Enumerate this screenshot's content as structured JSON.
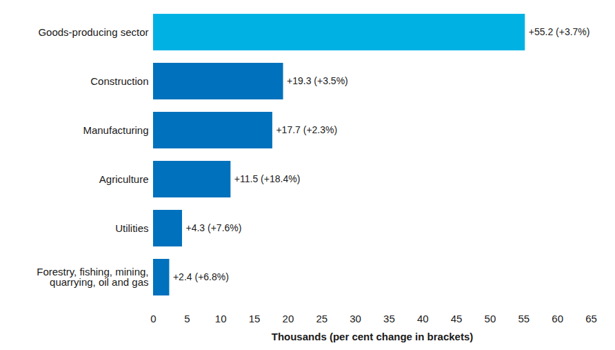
{
  "chart_data": {
    "type": "bar",
    "orientation": "horizontal",
    "categories": [
      "Goods-producing sector",
      "Construction",
      "Manufacturing",
      "Agriculture",
      "Utilities",
      "Forestry, fishing, mining,\nquarrying, oil and gas"
    ],
    "values": [
      55.2,
      19.3,
      17.7,
      11.5,
      4.3,
      2.4
    ],
    "value_labels": [
      "+55.2 (+3.7%)",
      "+19.3 (+3.5%)",
      "+17.7 (+2.3%)",
      "+11.5 (+18.4%)",
      "+4.3 (+7.6%)",
      "+2.4 (+6.8%)"
    ],
    "colors": [
      "#00b2e3",
      "#0071bc",
      "#0071bc",
      "#0071bc",
      "#0071bc",
      "#0071bc"
    ],
    "xlabel": "Thousands (per cent change in brackets)",
    "xlim": [
      0,
      65
    ],
    "xticks": [
      0,
      5,
      10,
      15,
      20,
      25,
      30,
      35,
      40,
      45,
      50,
      55,
      60,
      65
    ],
    "data_labels": true,
    "grid": false
  }
}
